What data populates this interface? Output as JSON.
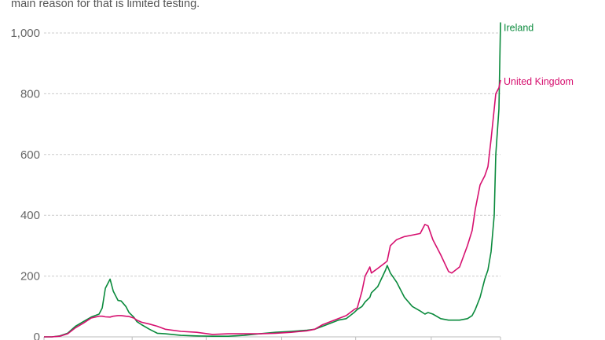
{
  "subtitle": "main reason for that is limited testing.",
  "chart_data": {
    "type": "line",
    "title": "",
    "xlabel": "",
    "ylabel": "",
    "ylim": [
      0,
      1000
    ],
    "yticks": [
      0,
      200,
      400,
      600,
      800,
      1000
    ],
    "ytick_labels": [
      "0",
      "200",
      "400",
      "600",
      "800",
      "1,000"
    ],
    "xlim": [
      0,
      290
    ],
    "xticks": [
      0,
      56,
      103,
      151,
      198,
      246,
      290
    ],
    "grid": "horizontal dashed",
    "legend": "inline labels at line ends",
    "x": [
      0,
      5,
      10,
      15,
      20,
      25,
      30,
      35,
      37,
      39,
      42,
      44,
      47,
      49,
      52,
      54,
      57,
      59,
      62,
      67,
      72,
      77,
      87,
      97,
      107,
      117,
      127,
      137,
      147,
      157,
      167,
      172,
      177,
      182,
      187,
      192,
      197,
      199,
      202,
      204,
      207,
      208,
      212,
      217,
      218,
      220,
      224,
      229,
      234,
      239,
      242,
      244,
      247,
      252,
      257,
      259,
      264,
      269,
      272,
      274,
      277,
      280,
      282,
      284,
      286,
      287,
      289,
      290
    ],
    "series": [
      {
        "name": "Ireland",
        "color": "#0a8a3c",
        "values": [
          0,
          0,
          3,
          12,
          35,
          50,
          65,
          75,
          95,
          160,
          190,
          150,
          120,
          118,
          100,
          80,
          65,
          50,
          40,
          25,
          12,
          10,
          5,
          3,
          2,
          2,
          5,
          10,
          15,
          18,
          22,
          25,
          35,
          45,
          55,
          60,
          80,
          90,
          100,
          115,
          130,
          145,
          165,
          220,
          235,
          210,
          180,
          130,
          100,
          85,
          75,
          80,
          75,
          60,
          55,
          55,
          55,
          60,
          70,
          90,
          130,
          190,
          220,
          280,
          400,
          600,
          750,
          1035
        ]
      },
      {
        "name": "United Kingdom",
        "color": "#d6106f",
        "values": [
          0,
          0,
          2,
          10,
          30,
          45,
          62,
          68,
          68,
          66,
          65,
          68,
          70,
          70,
          68,
          67,
          62,
          55,
          48,
          42,
          35,
          25,
          18,
          15,
          8,
          10,
          10,
          10,
          12,
          15,
          20,
          25,
          40,
          50,
          60,
          70,
          90,
          95,
          150,
          200,
          230,
          210,
          225,
          245,
          250,
          300,
          320,
          330,
          335,
          340,
          370,
          365,
          320,
          270,
          215,
          210,
          230,
          300,
          350,
          420,
          500,
          530,
          560,
          650,
          750,
          800,
          820,
          845
        ]
      }
    ]
  }
}
